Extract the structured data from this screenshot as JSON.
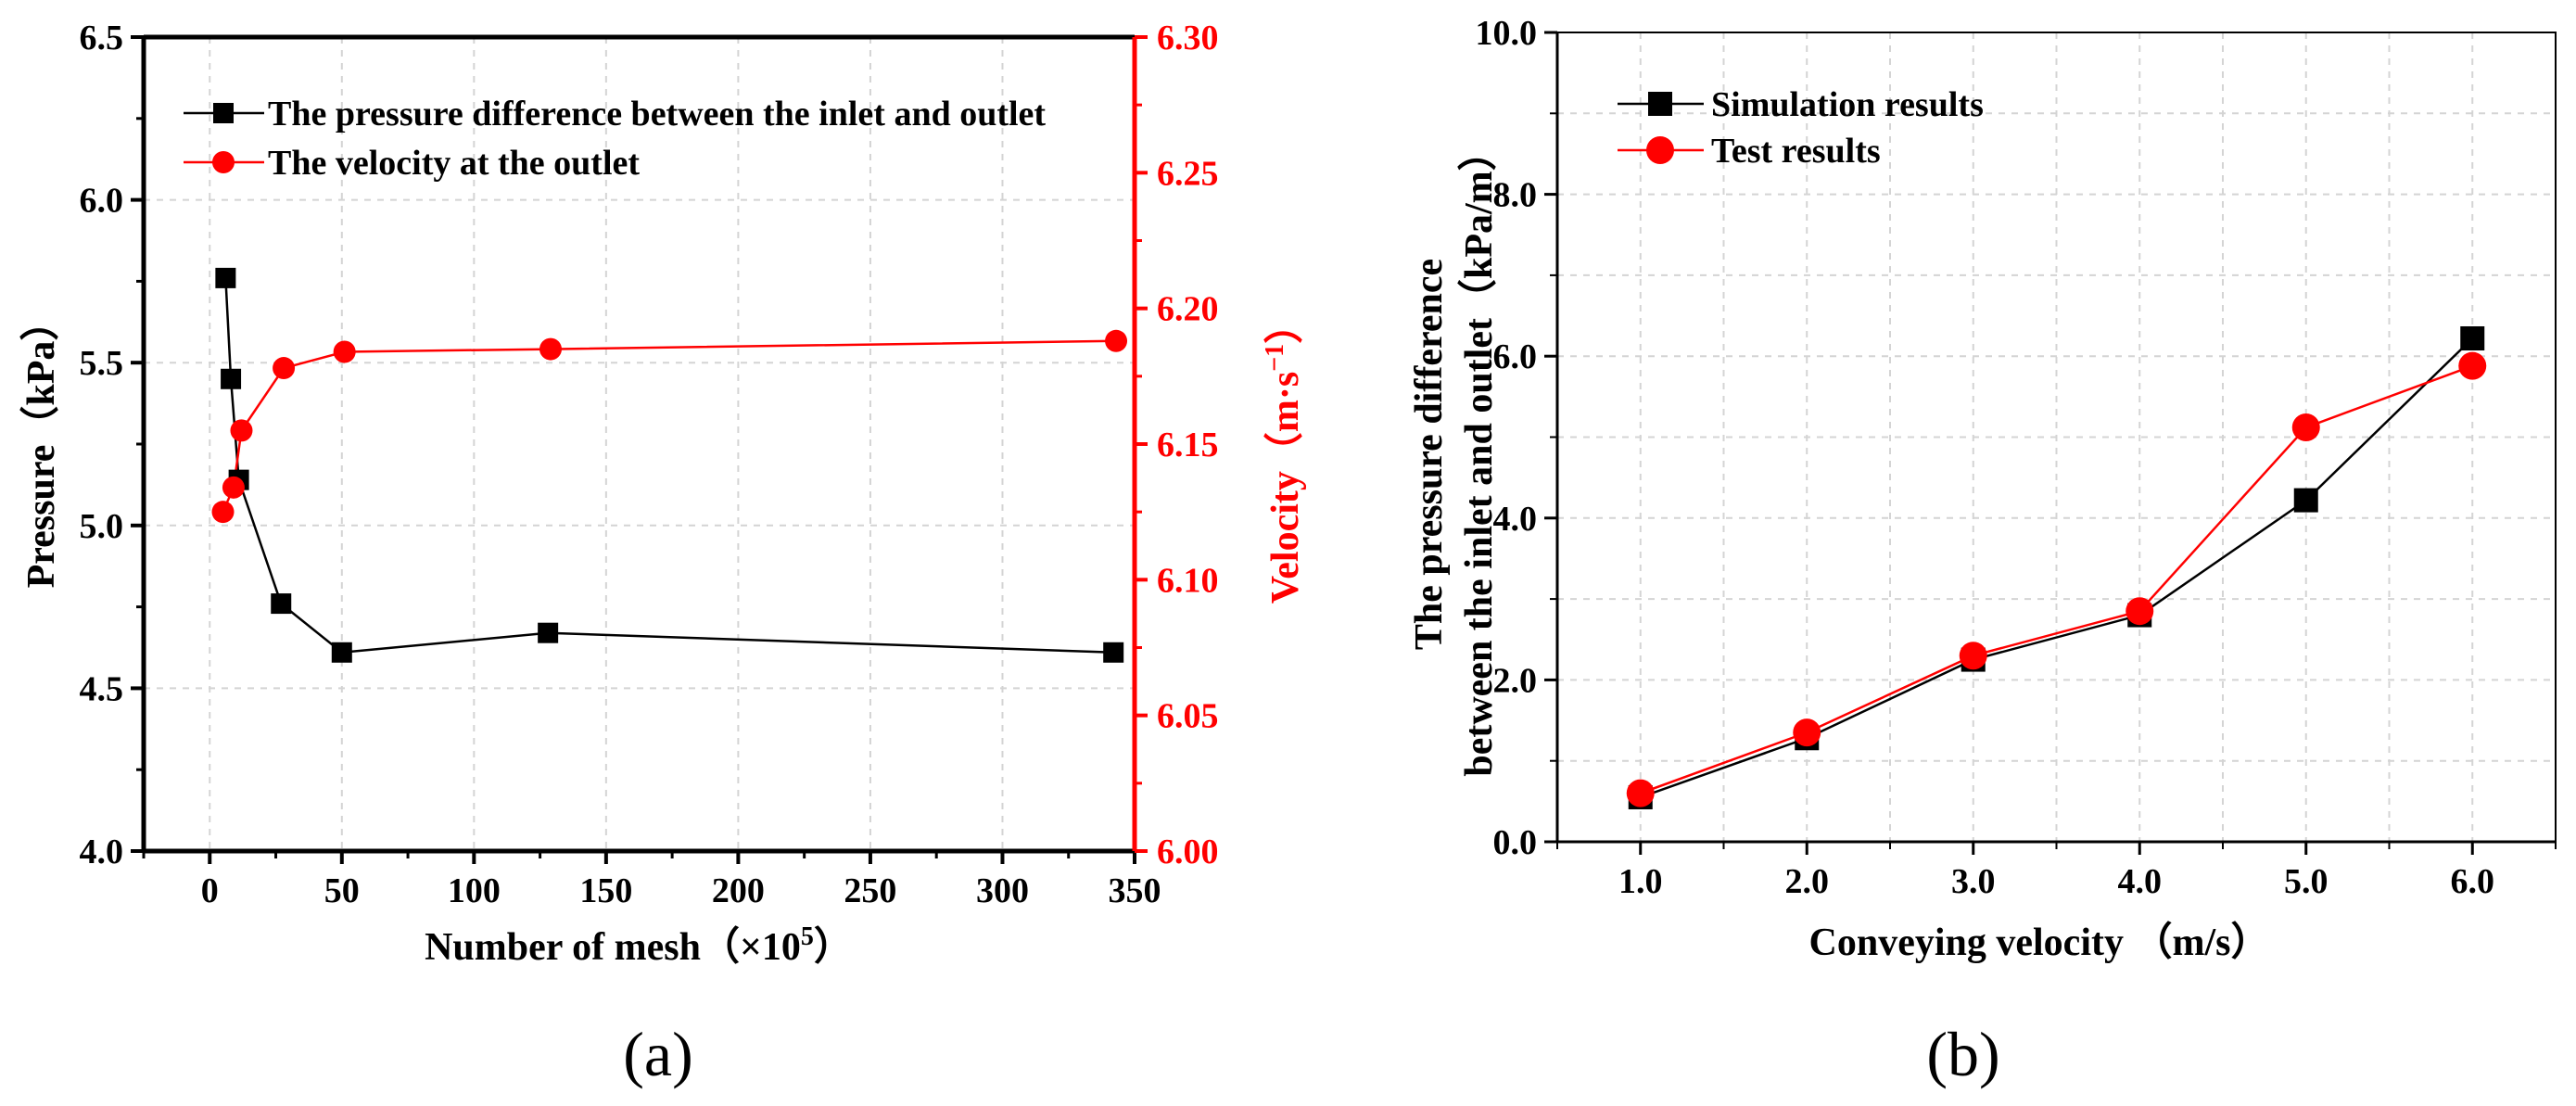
{
  "chart_data": [
    {
      "panel_label": "(a)",
      "type": "line",
      "xlabel": "Number of mesh（×10",
      "xlabel_sup": "5",
      "xlabel_end": "）",
      "ylabel": "Pressure（kPa）",
      "y2label": "Velocity（m·s",
      "y2label_sup": "−1",
      "y2label_end": "）",
      "xlim": [
        -25,
        350
      ],
      "ylim": [
        4.0,
        6.5
      ],
      "y2lim": [
        6.0,
        6.3
      ],
      "xticks": [
        "0",
        "50",
        "100",
        "150",
        "200",
        "250",
        "300",
        "350"
      ],
      "yticks": [
        "4.0",
        "4.5",
        "5.0",
        "5.5",
        "6.0",
        "6.5"
      ],
      "y2ticks": [
        "6.00",
        "6.05",
        "6.10",
        "6.15",
        "6.20",
        "6.25",
        "6.30"
      ],
      "legend_position": "top-left",
      "series": [
        {
          "name": "The pressure difference between the inlet and outlet",
          "axis": "left",
          "color": "#000000",
          "marker": "square",
          "x": [
            6,
            8,
            11,
            27,
            50,
            128,
            342
          ],
          "y": [
            5.76,
            5.45,
            5.14,
            4.76,
            4.61,
            4.67,
            4.61
          ]
        },
        {
          "name": "The velocity at the outlet",
          "axis": "right",
          "color": "#ff0000",
          "marker": "circle",
          "x": [
            5,
            9,
            12,
            28,
            51,
            129,
            343
          ],
          "y": [
            6.125,
            6.134,
            6.155,
            6.178,
            6.184,
            6.185,
            6.188
          ]
        }
      ]
    },
    {
      "panel_label": "(b)",
      "type": "line",
      "xlabel": "Conveying velocity （m/s）",
      "ylabel_line1": "The pressure difference",
      "ylabel_line2": "between the inlet and outlet（kPa/m）",
      "xlim": [
        0.5,
        6.5
      ],
      "ylim": [
        0.0,
        10.0
      ],
      "xticks": [
        "1.0",
        "2.0",
        "3.0",
        "4.0",
        "5.0",
        "6.0"
      ],
      "yticks": [
        "0.0",
        "2.0",
        "4.0",
        "6.0",
        "8.0",
        "10.0"
      ],
      "legend_position": "top-left",
      "series": [
        {
          "name": "Simulation results",
          "color": "#000000",
          "marker": "square",
          "x": [
            1.0,
            2.0,
            3.0,
            4.0,
            5.0,
            6.0
          ],
          "y": [
            0.55,
            1.28,
            2.25,
            2.8,
            4.22,
            6.22
          ]
        },
        {
          "name": "Test results",
          "color": "#ff0000",
          "marker": "circle",
          "x": [
            1.0,
            2.0,
            3.0,
            4.0,
            5.0,
            6.0
          ],
          "y": [
            0.6,
            1.35,
            2.3,
            2.85,
            5.12,
            5.88
          ]
        }
      ]
    }
  ]
}
